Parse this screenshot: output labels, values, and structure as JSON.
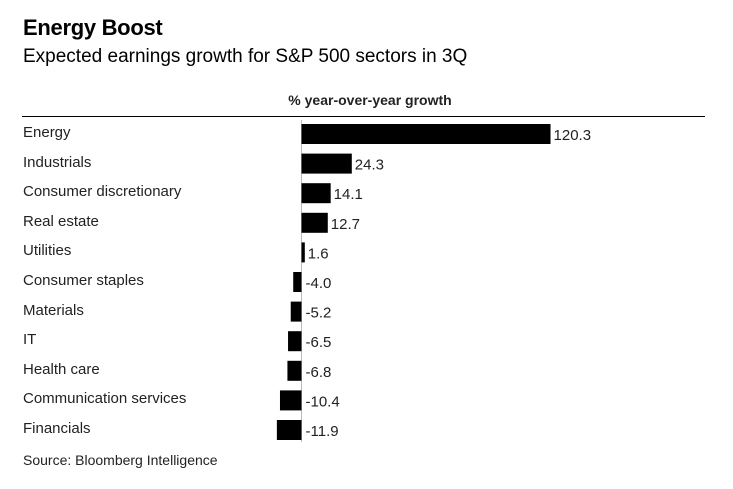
{
  "title": "Energy Boost",
  "subtitle": "Expected earnings growth for S&P 500 sectors in 3Q",
  "source": "Source: Bloomberg Intelligence",
  "chart_data": {
    "type": "bar",
    "orientation": "horizontal",
    "column_header": "% year-over-year growth",
    "categories": [
      "Energy",
      "Industrials",
      "Consumer discretionary",
      "Real estate",
      "Utilities",
      "Consumer staples",
      "Materials",
      "IT",
      "Health care",
      "Communication services",
      "Financials"
    ],
    "values": [
      120.3,
      24.3,
      14.1,
      12.7,
      1.6,
      -4.0,
      -5.2,
      -6.5,
      -6.8,
      -10.4,
      -11.9
    ],
    "value_labels": [
      "120.3",
      "24.3",
      "14.1",
      "12.7",
      "1.6",
      "-4.0",
      "-5.2",
      "-6.5",
      "-6.8",
      "-10.4",
      "-11.9"
    ],
    "bar_color": "#000000",
    "grid": false,
    "legend": "none"
  }
}
